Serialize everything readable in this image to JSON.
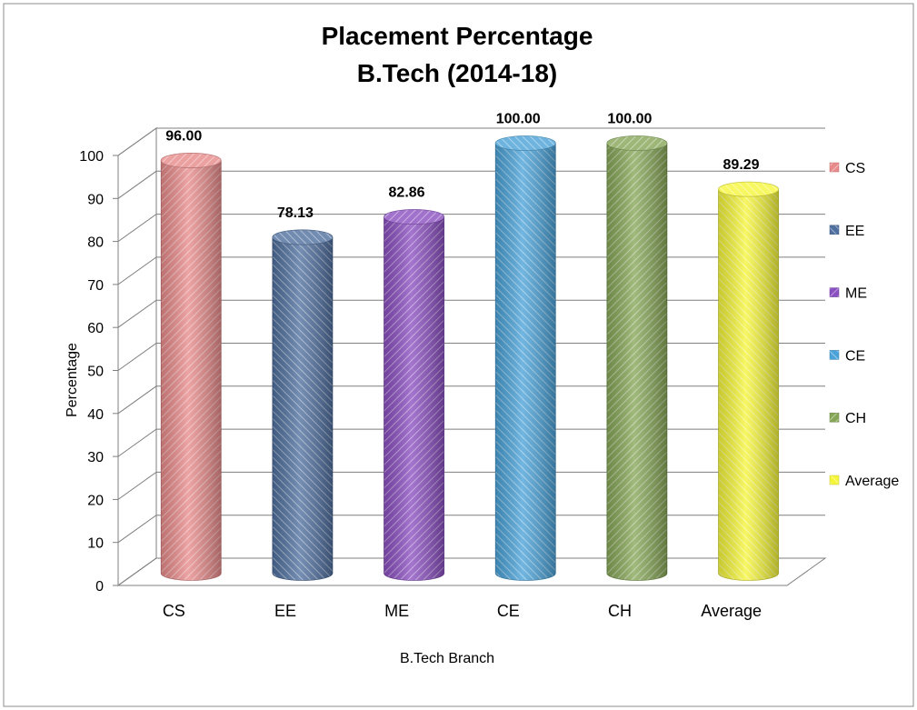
{
  "chart_data": {
    "type": "bar",
    "title_lines": [
      "Placement Percentage",
      "B.Tech (2014-18)"
    ],
    "xlabel": "B.Tech Branch",
    "ylabel": "Percentage",
    "ylim": [
      0,
      100
    ],
    "yticks": [
      0,
      10,
      20,
      30,
      40,
      50,
      60,
      70,
      80,
      90,
      100
    ],
    "categories": [
      "CS",
      "EE",
      "ME",
      "CE",
      "CH",
      "Average"
    ],
    "values": [
      96.0,
      78.13,
      82.86,
      100.0,
      100.0,
      89.29
    ],
    "data_labels": [
      "96.00",
      "78.13",
      "82.86",
      "100.00",
      "100.00",
      "89.29"
    ],
    "colors": [
      "#e88a8a",
      "#4f6f9e",
      "#8a4fc0",
      "#4aa2d8",
      "#86a657",
      "#f5f53a"
    ],
    "legend": {
      "position": "right",
      "entries": [
        "CS",
        "EE",
        "ME",
        "CE",
        "CH",
        "Average"
      ]
    },
    "grid": true,
    "style": "3d-cylinder"
  }
}
